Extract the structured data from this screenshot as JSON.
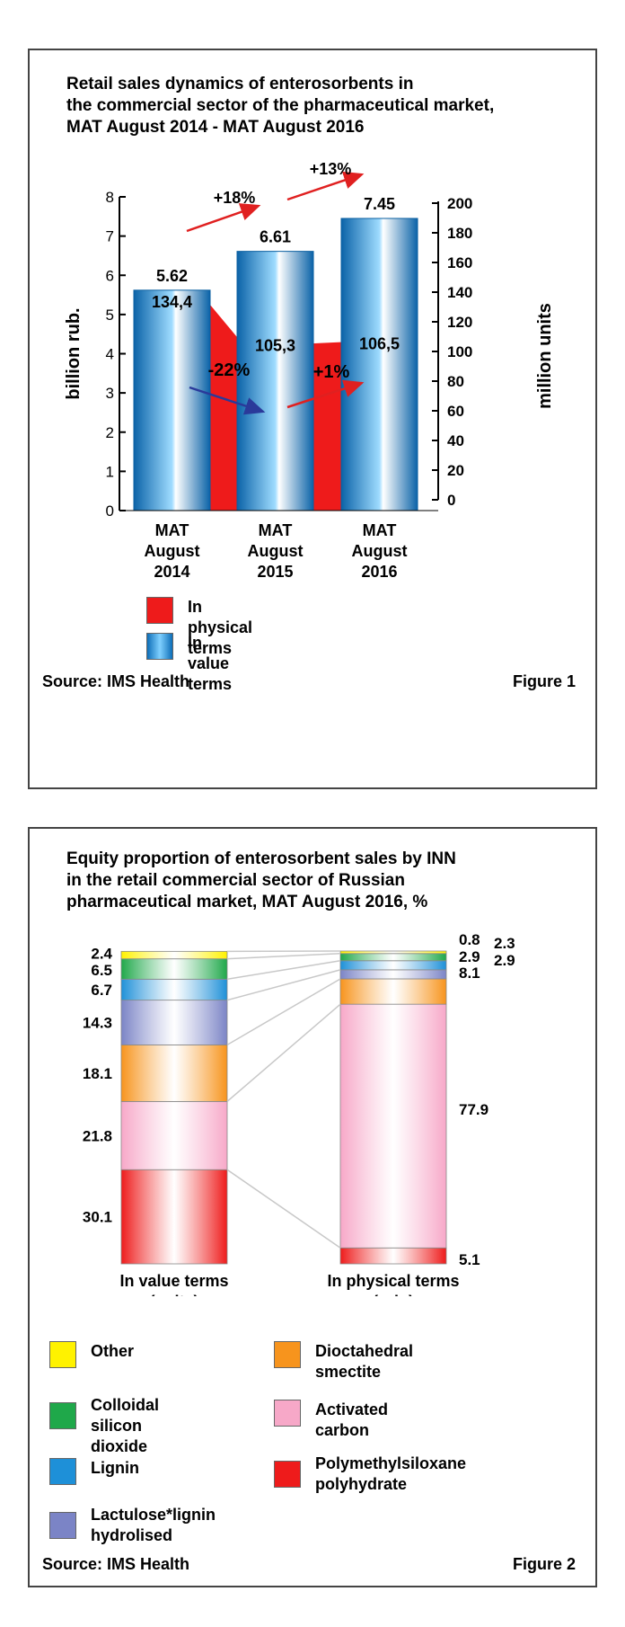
{
  "figure1": {
    "title_lines": [
      "Retail sales dynamics of enterosorbents in",
      "the commercial sector of the pharmaceutical market,",
      "MAT August 2014 - MAT August 2016"
    ],
    "source": "Source: IMS Health",
    "figure_label": "Figure 1",
    "legend": [
      {
        "label": "In physical terms",
        "color": "#ee1b1b"
      },
      {
        "label": "In value terms",
        "color": "#1e90d8"
      }
    ]
  },
  "figure2": {
    "title_lines": [
      "Equity proportion of enterosorbent sales by INN",
      "in the retail commercial sector of Russian",
      "pharmaceutical market, MAT August 2016, %"
    ],
    "source": "Source: IMS Health",
    "figure_label": "Figure 2"
  },
  "chart_data": [
    {
      "type": "bar",
      "categories": [
        [
          "MAT",
          "August",
          "2014"
        ],
        [
          "MAT",
          "August",
          "2015"
        ],
        [
          "MAT",
          "August",
          "2016"
        ]
      ],
      "ylabel": "billion rub.",
      "y2label": "million units",
      "ylim": [
        0,
        8
      ],
      "y2lim": [
        0,
        200
      ],
      "yticks": [
        0,
        1,
        2,
        3,
        4,
        5,
        6,
        7,
        8
      ],
      "y2ticks": [
        0,
        20,
        40,
        60,
        80,
        100,
        120,
        140,
        160,
        180,
        200
      ],
      "series": [
        {
          "name": "In physical terms",
          "axis": "y2",
          "values": [
            134.4,
            105.3,
            106.5
          ],
          "labels": [
            "134,4",
            "105,3",
            "106,5"
          ],
          "color": "#ee1b1b"
        },
        {
          "name": "In value terms",
          "axis": "y",
          "values": [
            5.62,
            6.61,
            7.45
          ],
          "labels": [
            "5.62",
            "6.61",
            "7.45"
          ],
          "color": "#1e90d8"
        }
      ],
      "annotations": [
        {
          "text": "+18%",
          "between": [
            0,
            1
          ],
          "series": "In value terms",
          "direction": "up"
        },
        {
          "text": "+13%",
          "between": [
            1,
            2
          ],
          "series": "In value terms",
          "direction": "up"
        },
        {
          "text": "-22%",
          "between": [
            0,
            1
          ],
          "series": "In physical terms",
          "direction": "down"
        },
        {
          "text": "+1%",
          "between": [
            1,
            2
          ],
          "series": "In physical terms",
          "direction": "up"
        }
      ],
      "grid": false,
      "legend": "bottom"
    },
    {
      "type": "bar",
      "stacked": true,
      "percent": true,
      "categories": [
        [
          "In value terms",
          "(units)"
        ],
        [
          "In physical terms",
          "(rub.)"
        ]
      ],
      "series": [
        {
          "name": "Polymethylsiloxane polyhydrate",
          "values": [
            30.1,
            5.1
          ],
          "labels": [
            "30.1",
            "5.1"
          ],
          "color": "#ee1b1b"
        },
        {
          "name": "Activated carbon",
          "values": [
            21.8,
            77.9
          ],
          "labels": [
            "21.8",
            "77.9"
          ],
          "color": "#f7a8c8"
        },
        {
          "name": "Dioctahedral smectite",
          "values": [
            18.1,
            8.1
          ],
          "labels": [
            "18.1",
            "8.1"
          ],
          "color": "#f7941d"
        },
        {
          "name": "Lactulose*lignin hydrolised",
          "values": [
            14.3,
            2.9
          ],
          "labels": [
            "14.3",
            "2.9"
          ],
          "color": "#7b84c6"
        },
        {
          "name": "Lignin",
          "values": [
            6.7,
            2.9
          ],
          "labels": [
            "6.7",
            "2.9"
          ],
          "color": "#1e90d8"
        },
        {
          "name": "Colloidal silicon dioxide",
          "values": [
            6.5,
            2.3
          ],
          "labels": [
            "6.5",
            "2.3"
          ],
          "color": "#1fa84a"
        },
        {
          "name": "Other",
          "values": [
            2.4,
            0.8
          ],
          "labels": [
            "2.4",
            "0.8"
          ],
          "color": "#fff200"
        }
      ],
      "legend_lines": [
        [
          "Other"
        ],
        [
          "Colloidal silicon",
          "dioxide"
        ],
        [
          "Lignin"
        ],
        [
          "Lactulose*lignin",
          "hydrolised"
        ],
        [
          "Dioctahedral smectite"
        ],
        [
          "Activated carbon"
        ],
        [
          "Polymethylsiloxane",
          "polyhydrate"
        ]
      ],
      "legend": "bottom"
    }
  ]
}
